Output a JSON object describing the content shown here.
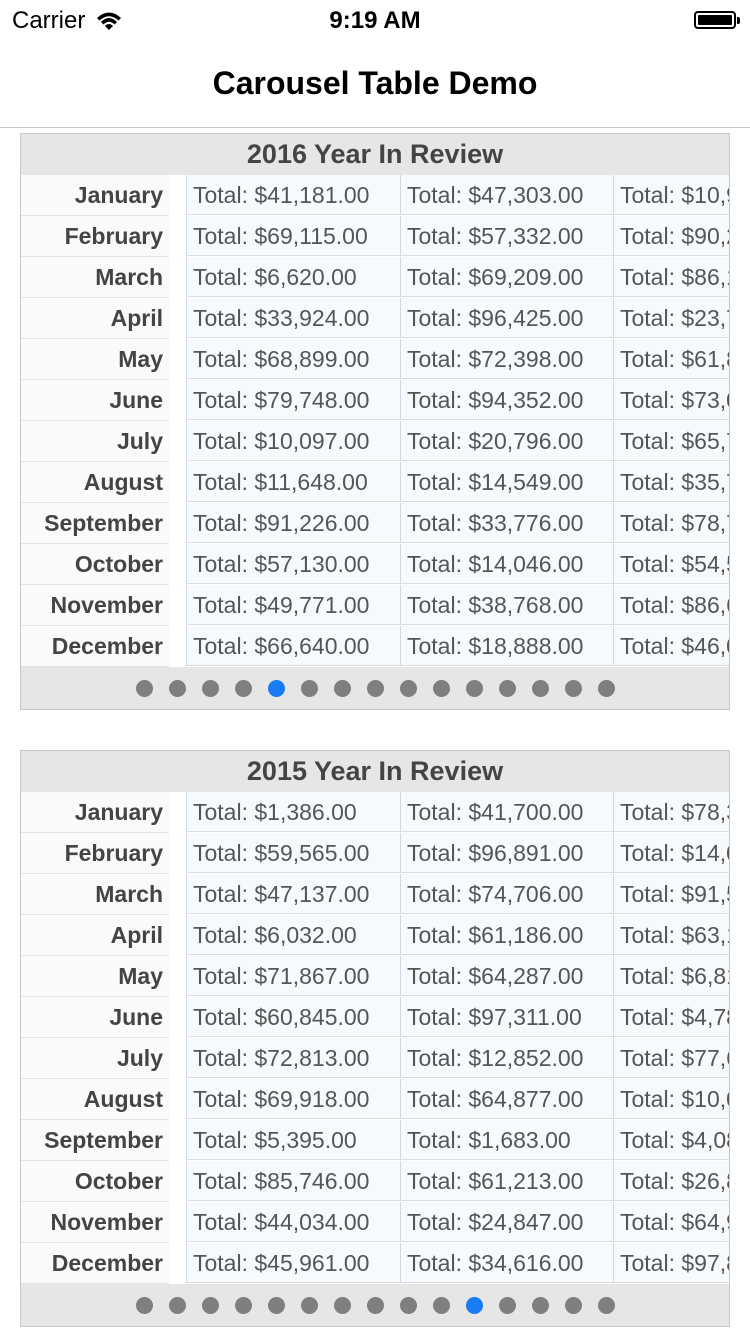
{
  "status": {
    "carrier": "Carrier",
    "time": "9:19 AM"
  },
  "nav": {
    "title": "Carousel Table Demo"
  },
  "colors": {
    "active_dot": "#1a7cf5",
    "inactive_dot": "#7f7f7f"
  },
  "cards": [
    {
      "title": "2016 Year In Review",
      "page_count": 15,
      "active_page": 4,
      "rows": [
        {
          "month": "January",
          "values": [
            "Total: $41,181.00",
            "Total: $47,303.00",
            "Total: $10,9"
          ]
        },
        {
          "month": "February",
          "values": [
            "Total: $69,115.00",
            "Total: $57,332.00",
            "Total: $90,2"
          ]
        },
        {
          "month": "March",
          "values": [
            "Total: $6,620.00",
            "Total: $69,209.00",
            "Total: $86,1"
          ]
        },
        {
          "month": "April",
          "values": [
            "Total: $33,924.00",
            "Total: $96,425.00",
            "Total: $23,7"
          ]
        },
        {
          "month": "May",
          "values": [
            "Total: $68,899.00",
            "Total: $72,398.00",
            "Total: $61,8"
          ]
        },
        {
          "month": "June",
          "values": [
            "Total: $79,748.00",
            "Total: $94,352.00",
            "Total: $73,0"
          ]
        },
        {
          "month": "July",
          "values": [
            "Total: $10,097.00",
            "Total: $20,796.00",
            "Total: $65,7"
          ]
        },
        {
          "month": "August",
          "values": [
            "Total: $11,648.00",
            "Total: $14,549.00",
            "Total: $35,7"
          ]
        },
        {
          "month": "September",
          "values": [
            "Total: $91,226.00",
            "Total: $33,776.00",
            "Total: $78,7"
          ]
        },
        {
          "month": "October",
          "values": [
            "Total: $57,130.00",
            "Total: $14,046.00",
            "Total: $54,5"
          ]
        },
        {
          "month": "November",
          "values": [
            "Total: $49,771.00",
            "Total: $38,768.00",
            "Total: $86,6"
          ]
        },
        {
          "month": "December",
          "values": [
            "Total: $66,640.00",
            "Total: $18,888.00",
            "Total: $46,0"
          ]
        }
      ]
    },
    {
      "title": "2015 Year In Review",
      "page_count": 15,
      "active_page": 10,
      "rows": [
        {
          "month": "January",
          "values": [
            "Total: $1,386.00",
            "Total: $41,700.00",
            "Total: $78,3"
          ]
        },
        {
          "month": "February",
          "values": [
            "Total: $59,565.00",
            "Total: $96,891.00",
            "Total: $14,0"
          ]
        },
        {
          "month": "March",
          "values": [
            "Total: $47,137.00",
            "Total: $74,706.00",
            "Total: $91,5"
          ]
        },
        {
          "month": "April",
          "values": [
            "Total: $6,032.00",
            "Total: $61,186.00",
            "Total: $63,1"
          ]
        },
        {
          "month": "May",
          "values": [
            "Total: $71,867.00",
            "Total: $64,287.00",
            "Total: $6,81"
          ]
        },
        {
          "month": "June",
          "values": [
            "Total: $60,845.00",
            "Total: $97,311.00",
            "Total: $4,78"
          ]
        },
        {
          "month": "July",
          "values": [
            "Total: $72,813.00",
            "Total: $12,852.00",
            "Total: $77,6"
          ]
        },
        {
          "month": "August",
          "values": [
            "Total: $69,918.00",
            "Total: $64,877.00",
            "Total: $10,0"
          ]
        },
        {
          "month": "September",
          "values": [
            "Total: $5,395.00",
            "Total: $1,683.00",
            "Total: $4,08"
          ]
        },
        {
          "month": "October",
          "values": [
            "Total: $85,746.00",
            "Total: $61,213.00",
            "Total: $26,8"
          ]
        },
        {
          "month": "November",
          "values": [
            "Total: $44,034.00",
            "Total: $24,847.00",
            "Total: $64,9"
          ]
        },
        {
          "month": "December",
          "values": [
            "Total: $45,961.00",
            "Total: $34,616.00",
            "Total: $97,8"
          ]
        }
      ]
    }
  ]
}
